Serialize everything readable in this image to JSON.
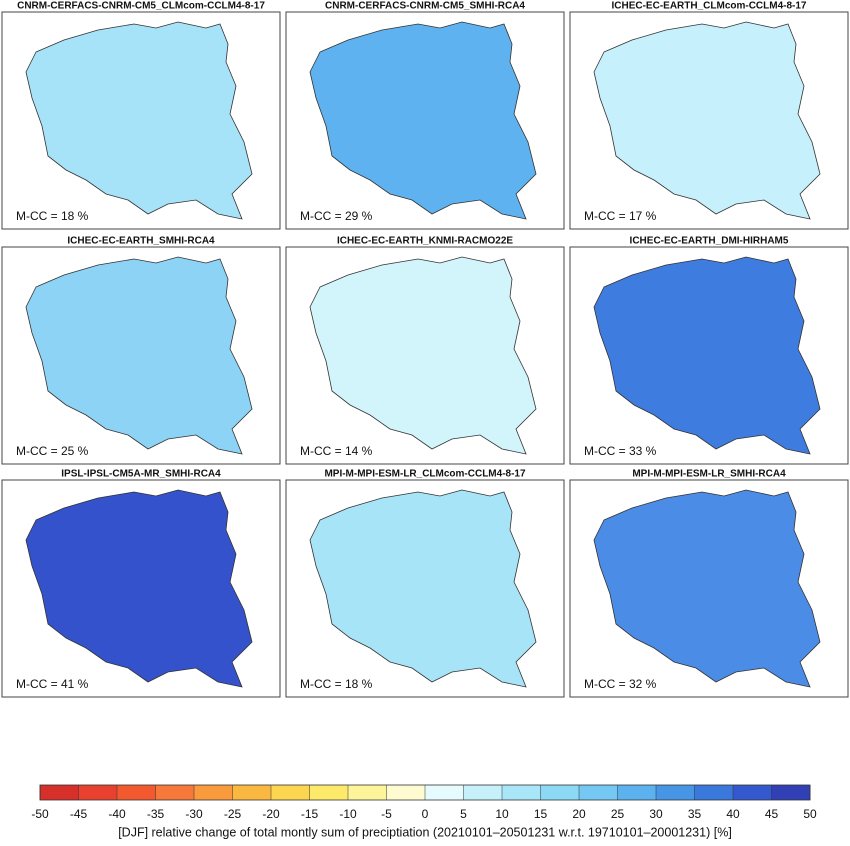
{
  "panels": [
    {
      "title": "CNRM-CERFACS-CNRM-CM5_CLMcom-CCLM4-8-17",
      "mcc": "M-CC = 18 %",
      "color": "#a6e3f8"
    },
    {
      "title": "CNRM-CERFACS-CNRM-CM5_SMHI-RCA4",
      "mcc": "M-CC = 29 %",
      "color": "#5eb2f0"
    },
    {
      "title": "ICHEC-EC-EARTH_CLMcom-CCLM4-8-17",
      "mcc": "M-CC = 17 %",
      "color": "#c6f0fb"
    },
    {
      "title": "ICHEC-EC-EARTH_SMHI-RCA4",
      "mcc": "M-CC = 25 %",
      "color": "#8dd3f5"
    },
    {
      "title": "ICHEC-EC-EARTH_KNMI-RACMO22E",
      "mcc": "M-CC = 14 %",
      "color": "#d2f4fb"
    },
    {
      "title": "ICHEC-EC-EARTH_DMI-HIRHAM5",
      "mcc": "M-CC = 33 %",
      "color": "#3f7ce0"
    },
    {
      "title": "IPSL-IPSL-CM5A-MR_SMHI-RCA4",
      "mcc": "M-CC = 41 %",
      "color": "#3452cc"
    },
    {
      "title": "MPI-M-MPI-ESM-LR_CLMcom-CCLM4-8-17",
      "mcc": "M-CC = 18 %",
      "color": "#a8e4f8"
    },
    {
      "title": "MPI-M-MPI-ESM-LR_SMHI-RCA4",
      "mcc": "M-CC = 32 %",
      "color": "#4b8ce6"
    }
  ],
  "colorbar": {
    "ticks": [
      -50,
      -45,
      -40,
      -35,
      -30,
      -25,
      -20,
      -15,
      -10,
      -5,
      0,
      5,
      10,
      15,
      20,
      25,
      30,
      35,
      40,
      45,
      50
    ],
    "colors": [
      "#d7302b",
      "#e8412f",
      "#f2592f",
      "#f7793a",
      "#f99a3c",
      "#fbb840",
      "#fcd651",
      "#fde96a",
      "#fef59a",
      "#fefbd0",
      "#e6fbfd",
      "#c6f1fb",
      "#a8e6f8",
      "#8cd9f5",
      "#74c8f3",
      "#5cb2ef",
      "#4796e6",
      "#3a78dc",
      "#3459cf",
      "#3141b5"
    ],
    "label": "[DJF]  relative change of total montly sum of preciptiation (20210101–20501231 w.r.t. 19710101–20001231) [%]"
  }
}
